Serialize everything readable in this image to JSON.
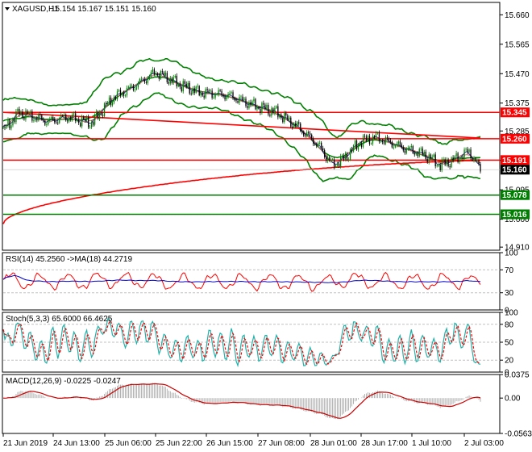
{
  "chart_data": [
    {
      "type": "candlestick",
      "title": "XAGUSD,H1",
      "ohlc_text": "15.154 15.167 15.151 15.160",
      "ylim": [
        14.9,
        15.7
      ],
      "y_ticks": [
        "15.660",
        "15.565",
        "15.470",
        "15.375",
        "15.285",
        "15.190",
        "15.095",
        "15.000",
        "14.910"
      ],
      "current_price": "15.160",
      "candles": [],
      "bollinger": {
        "upper": [],
        "middle": [],
        "lower": []
      },
      "ma_long": [],
      "ma_short": [],
      "ma_short2": [],
      "levels": [
        {
          "label": "15.345",
          "color": "#ff0000"
        },
        {
          "label": "15.260",
          "color": "#ff0000"
        },
        {
          "label": "15.191",
          "color": "#ff0000"
        },
        {
          "label": "15.078",
          "color": "#008000"
        },
        {
          "label": "15.016",
          "color": "#008000"
        }
      ],
      "trendlines": [
        {
          "color": "#ff0000",
          "from": [
            0,
            15.345
          ],
          "to": [
            297,
            15.262
          ]
        }
      ]
    },
    {
      "type": "line",
      "title": "RSI(14) 45.2560 ->MA(18) 44.2719",
      "ylim": [
        0,
        100
      ],
      "y_ticks": [
        "100",
        "70",
        "30",
        "0"
      ],
      "levels": [
        70,
        30
      ],
      "series": [
        {
          "values": [],
          "color": "#ff0000"
        },
        {
          "values": [],
          "color": "#0000cc"
        }
      ]
    },
    {
      "type": "line",
      "title": "Stoch(5,3,3) 65.6000 66.4625",
      "ylim": [
        0,
        100
      ],
      "y_ticks": [
        "100",
        "80",
        "50",
        "20",
        "0"
      ],
      "levels": [
        80,
        50,
        20
      ],
      "series": [
        {
          "values": [],
          "color": "#20b2aa"
        },
        {
          "values": [],
          "color": "#ff0000"
        }
      ]
    },
    {
      "type": "bar",
      "title": "MACD(12,26,9) -0.0225 -0.0247",
      "ylim": [
        -0.0563,
        0.0375
      ],
      "y_ticks": [
        "0.0375",
        "0.00",
        "-0.0563"
      ],
      "histogram": [],
      "signal": []
    }
  ],
  "x_axis": {
    "labels": [
      "21 Jun 2019",
      "24 Jun 13:00",
      "25 Jun 06:00",
      "25 Jun 22:00",
      "26 Jun 15:00",
      "27 Jun 08:00",
      "28 Jun 01:00",
      "28 Jun 17:00",
      "1 Jul 10:00",
      "2 Jul 03:00"
    ]
  },
  "colors": {
    "bull": "#008000",
    "bear": "#000000",
    "bb": "#008000",
    "ma_long": "#ff0000",
    "ma_short": "#333399",
    "ma_short2": "#cc6666",
    "grid": "#c0c0c0",
    "label_dark": "#000000"
  }
}
